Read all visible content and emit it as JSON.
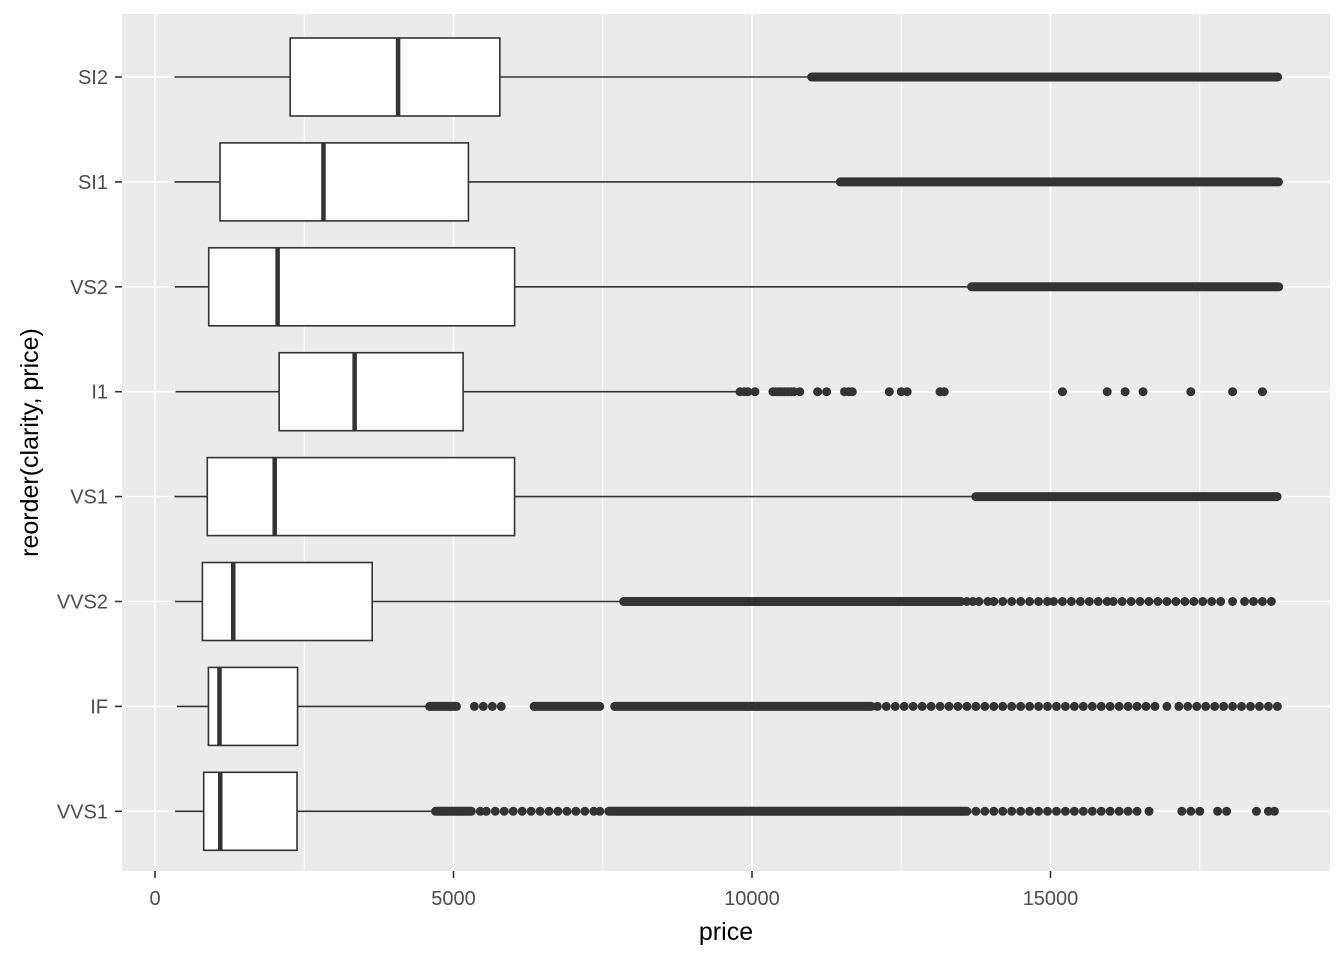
{
  "chart_data": {
    "type": "boxplot",
    "orientation": "horizontal",
    "xlabel": "price",
    "ylabel": "reorder(clarity, price)",
    "xlim": [
      -550,
      19300
    ],
    "x_ticks": [
      0,
      5000,
      10000,
      15000
    ],
    "x_tick_labels": [
      "0",
      "5000",
      "10000",
      "15000"
    ],
    "grid": true,
    "panel_background": "#EBEBEB",
    "grid_color": "#FFFFFF",
    "box_fill": "#FFFFFF",
    "box_stroke": "#333333",
    "outlier_color": "#333333",
    "categories_top_to_bottom": [
      "SI2",
      "SI1",
      "VS2",
      "I1",
      "VS1",
      "VVS2",
      "IF",
      "VVS1"
    ],
    "boxes": [
      {
        "category": "SI2",
        "whisker_low": 326,
        "q1": 2264,
        "median": 4072,
        "q3": 5777,
        "whisker_high": 11000,
        "outlier_ranges": [
          [
            11000,
            18804
          ]
        ],
        "outliers": []
      },
      {
        "category": "SI1",
        "whisker_low": 326,
        "q1": 1089,
        "median": 2822,
        "q3": 5250,
        "whisker_high": 11480,
        "outlier_ranges": [
          [
            11480,
            18818
          ]
        ],
        "outliers": []
      },
      {
        "category": "VS2",
        "whisker_low": 334,
        "q1": 900,
        "median": 2054,
        "q3": 6024,
        "whisker_high": 13680,
        "outlier_ranges": [
          [
            13680,
            18823
          ]
        ],
        "outliers": []
      },
      {
        "category": "I1",
        "whisker_low": 345,
        "q1": 2080,
        "median": 3344,
        "q3": 5161,
        "whisker_high": 9750,
        "outlier_ranges": [],
        "outliers": [
          9800,
          9870,
          9930,
          10050,
          10350,
          10400,
          10450,
          10500,
          10550,
          10600,
          10650,
          10700,
          10800,
          11100,
          11250,
          11550,
          11620,
          11680,
          12300,
          12500,
          12600,
          13150,
          13220,
          15200,
          15950,
          16250,
          16550,
          17350,
          18050,
          18550
        ]
      },
      {
        "category": "VS1",
        "whisker_low": 327,
        "q1": 876,
        "median": 2005,
        "q3": 6023,
        "whisker_high": 13750,
        "outlier_ranges": [
          [
            13750,
            18795
          ]
        ],
        "outliers": []
      },
      {
        "category": "VVS2",
        "whisker_low": 336,
        "q1": 794,
        "median": 1311,
        "q3": 3638,
        "whisker_high": 7850,
        "outlier_ranges": [
          [
            7850,
            13500
          ]
        ],
        "outliers": [
          13600,
          13700,
          13800,
          13950,
          14050,
          14200,
          14350,
          14500,
          14650,
          14800,
          14950,
          15050,
          15200,
          15350,
          15500,
          15650,
          15800,
          15950,
          16050,
          16200,
          16350,
          16500,
          16650,
          16800,
          16950,
          17100,
          17250,
          17400,
          17550,
          17700,
          17850,
          18050,
          18250,
          18400,
          18550,
          18700
        ]
      },
      {
        "category": "IF",
        "whisker_low": 369,
        "q1": 895,
        "median": 1080,
        "q3": 2388,
        "whisker_high": 4600,
        "outlier_ranges": [
          [
            4600,
            5050
          ],
          [
            6350,
            7450
          ],
          [
            7700,
            12000
          ]
        ],
        "outliers": [
          5350,
          5500,
          5650,
          5800,
          12100,
          12250,
          12400,
          12550,
          12700,
          12850,
          13000,
          13150,
          13300,
          13450,
          13600,
          13750,
          13900,
          14050,
          14200,
          14350,
          14500,
          14650,
          14800,
          14950,
          15100,
          15250,
          15400,
          15550,
          15700,
          15850,
          16000,
          16150,
          16300,
          16450,
          16600,
          16750,
          16950,
          17150,
          17300,
          17450,
          17600,
          17750,
          17900,
          18050,
          18200,
          18350,
          18500,
          18650,
          18800
        ]
      },
      {
        "category": "VVS1",
        "whisker_low": 336,
        "q1": 816,
        "median": 1093,
        "q3": 2379,
        "whisker_high": 4700,
        "outlier_ranges": [
          [
            4700,
            5300
          ],
          [
            7600,
            13600
          ]
        ],
        "outliers": [
          5450,
          5550,
          5700,
          5850,
          6000,
          6150,
          6300,
          6450,
          6600,
          6750,
          6900,
          7050,
          7200,
          7350,
          7450,
          13750,
          13900,
          14050,
          14200,
          14350,
          14500,
          14650,
          14800,
          14950,
          15100,
          15250,
          15400,
          15550,
          15700,
          15850,
          16000,
          16150,
          16300,
          16450,
          16650,
          17200,
          17350,
          17500,
          17800,
          17950,
          18450,
          18650,
          18750
        ]
      }
    ]
  }
}
